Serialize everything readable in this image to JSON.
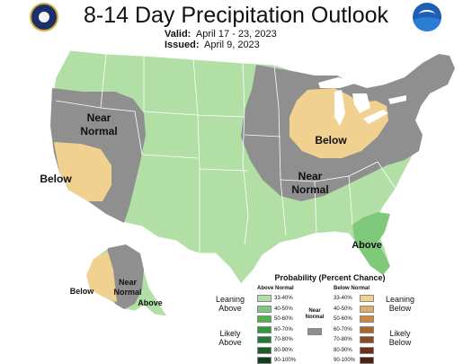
{
  "header": {
    "title": "8-14 Day Precipitation Outlook",
    "valid_label": "Valid:",
    "valid_value": "April 17 - 23, 2023",
    "issued_label": "Issued:",
    "issued_value": "April 9, 2023",
    "left_logo": "dept-of-commerce-seal",
    "right_logo": "noaa-logo"
  },
  "map_labels": {
    "west_near": "Near",
    "west_normal": "Normal",
    "southwest_below": "Below",
    "great_lakes_below": "Below",
    "central_near": "Near",
    "central_normal": "Normal",
    "southeast_above": "Above",
    "alaska_below": "Below",
    "alaska_near": "Near",
    "alaska_normal": "Normal",
    "alaska_above": "Above"
  },
  "legend": {
    "title": "Probability (Percent Chance)",
    "above_header": "Above Normal",
    "below_header": "Below Normal",
    "near_normal": "Near Normal",
    "leaning_above": "Leaning Above",
    "likely_above": "Likely Above",
    "leaning_below": "Leaning Below",
    "likely_below": "Likely Below",
    "above_rows": [
      {
        "range": "33-40%",
        "color": "#b2dfa6"
      },
      {
        "range": "40-50%",
        "color": "#7fc97a"
      },
      {
        "range": "50-60%",
        "color": "#4fb349"
      },
      {
        "range": "60-70%",
        "color": "#2f9a3d"
      },
      {
        "range": "70-80%",
        "color": "#237a34"
      },
      {
        "range": "80-90%",
        "color": "#1a5e28"
      },
      {
        "range": "90-100%",
        "color": "#10401b"
      }
    ],
    "below_rows": [
      {
        "range": "33-40%",
        "color": "#f1d18f"
      },
      {
        "range": "40-50%",
        "color": "#e0ad68"
      },
      {
        "range": "50-60%",
        "color": "#d08843"
      },
      {
        "range": "60-70%",
        "color": "#b0642a"
      },
      {
        "range": "70-80%",
        "color": "#8a4a1f"
      },
      {
        "range": "80-90%",
        "color": "#6b3416"
      },
      {
        "range": "90-100%",
        "color": "#4a220e"
      }
    ],
    "near_color": "#8f8f8f"
  },
  "colors": {
    "above_light": "#b2dfa6",
    "above_medium": "#7fc97a",
    "below_light": "#f1d18f",
    "near": "#8f8f8f",
    "border": "#ffffff"
  }
}
